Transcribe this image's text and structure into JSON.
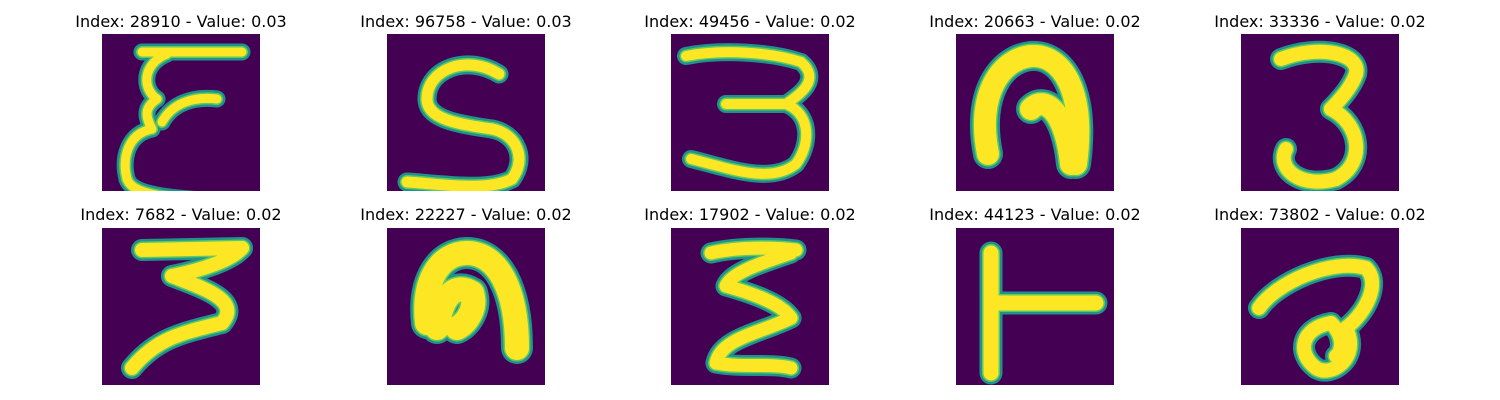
{
  "colors": {
    "background": "#440154",
    "stroke_edge": "#21918c",
    "stroke_mid": "#5ec962",
    "stroke_core": "#fde725"
  },
  "panels": [
    {
      "title": "Index: 28910 - Value: 0.03",
      "glyph": "digit-3-mirrored-icon"
    },
    {
      "title": "Index: 96758 - Value: 0.03",
      "glyph": "digit-5-like-icon"
    },
    {
      "title": "Index: 49456 - Value: 0.02",
      "glyph": "digit-3-icon"
    },
    {
      "title": "Index: 20663 - Value: 0.02",
      "glyph": "arch-shape-icon"
    },
    {
      "title": "Index: 33336 - Value: 0.02",
      "glyph": "digit-3-icon"
    },
    {
      "title": "Index: 7682 - Value: 0.02",
      "glyph": "digit-3-icon"
    },
    {
      "title": "Index: 22227 - Value: 0.02",
      "glyph": "arch-shape-icon"
    },
    {
      "title": "Index: 17902 - Value: 0.02",
      "glyph": "digit-3-mirrored-icon"
    },
    {
      "title": "Index: 44123 - Value: 0.02",
      "glyph": "t-shape-icon"
    },
    {
      "title": "Index: 73802 - Value: 0.02",
      "glyph": "a-like-icon"
    }
  ]
}
